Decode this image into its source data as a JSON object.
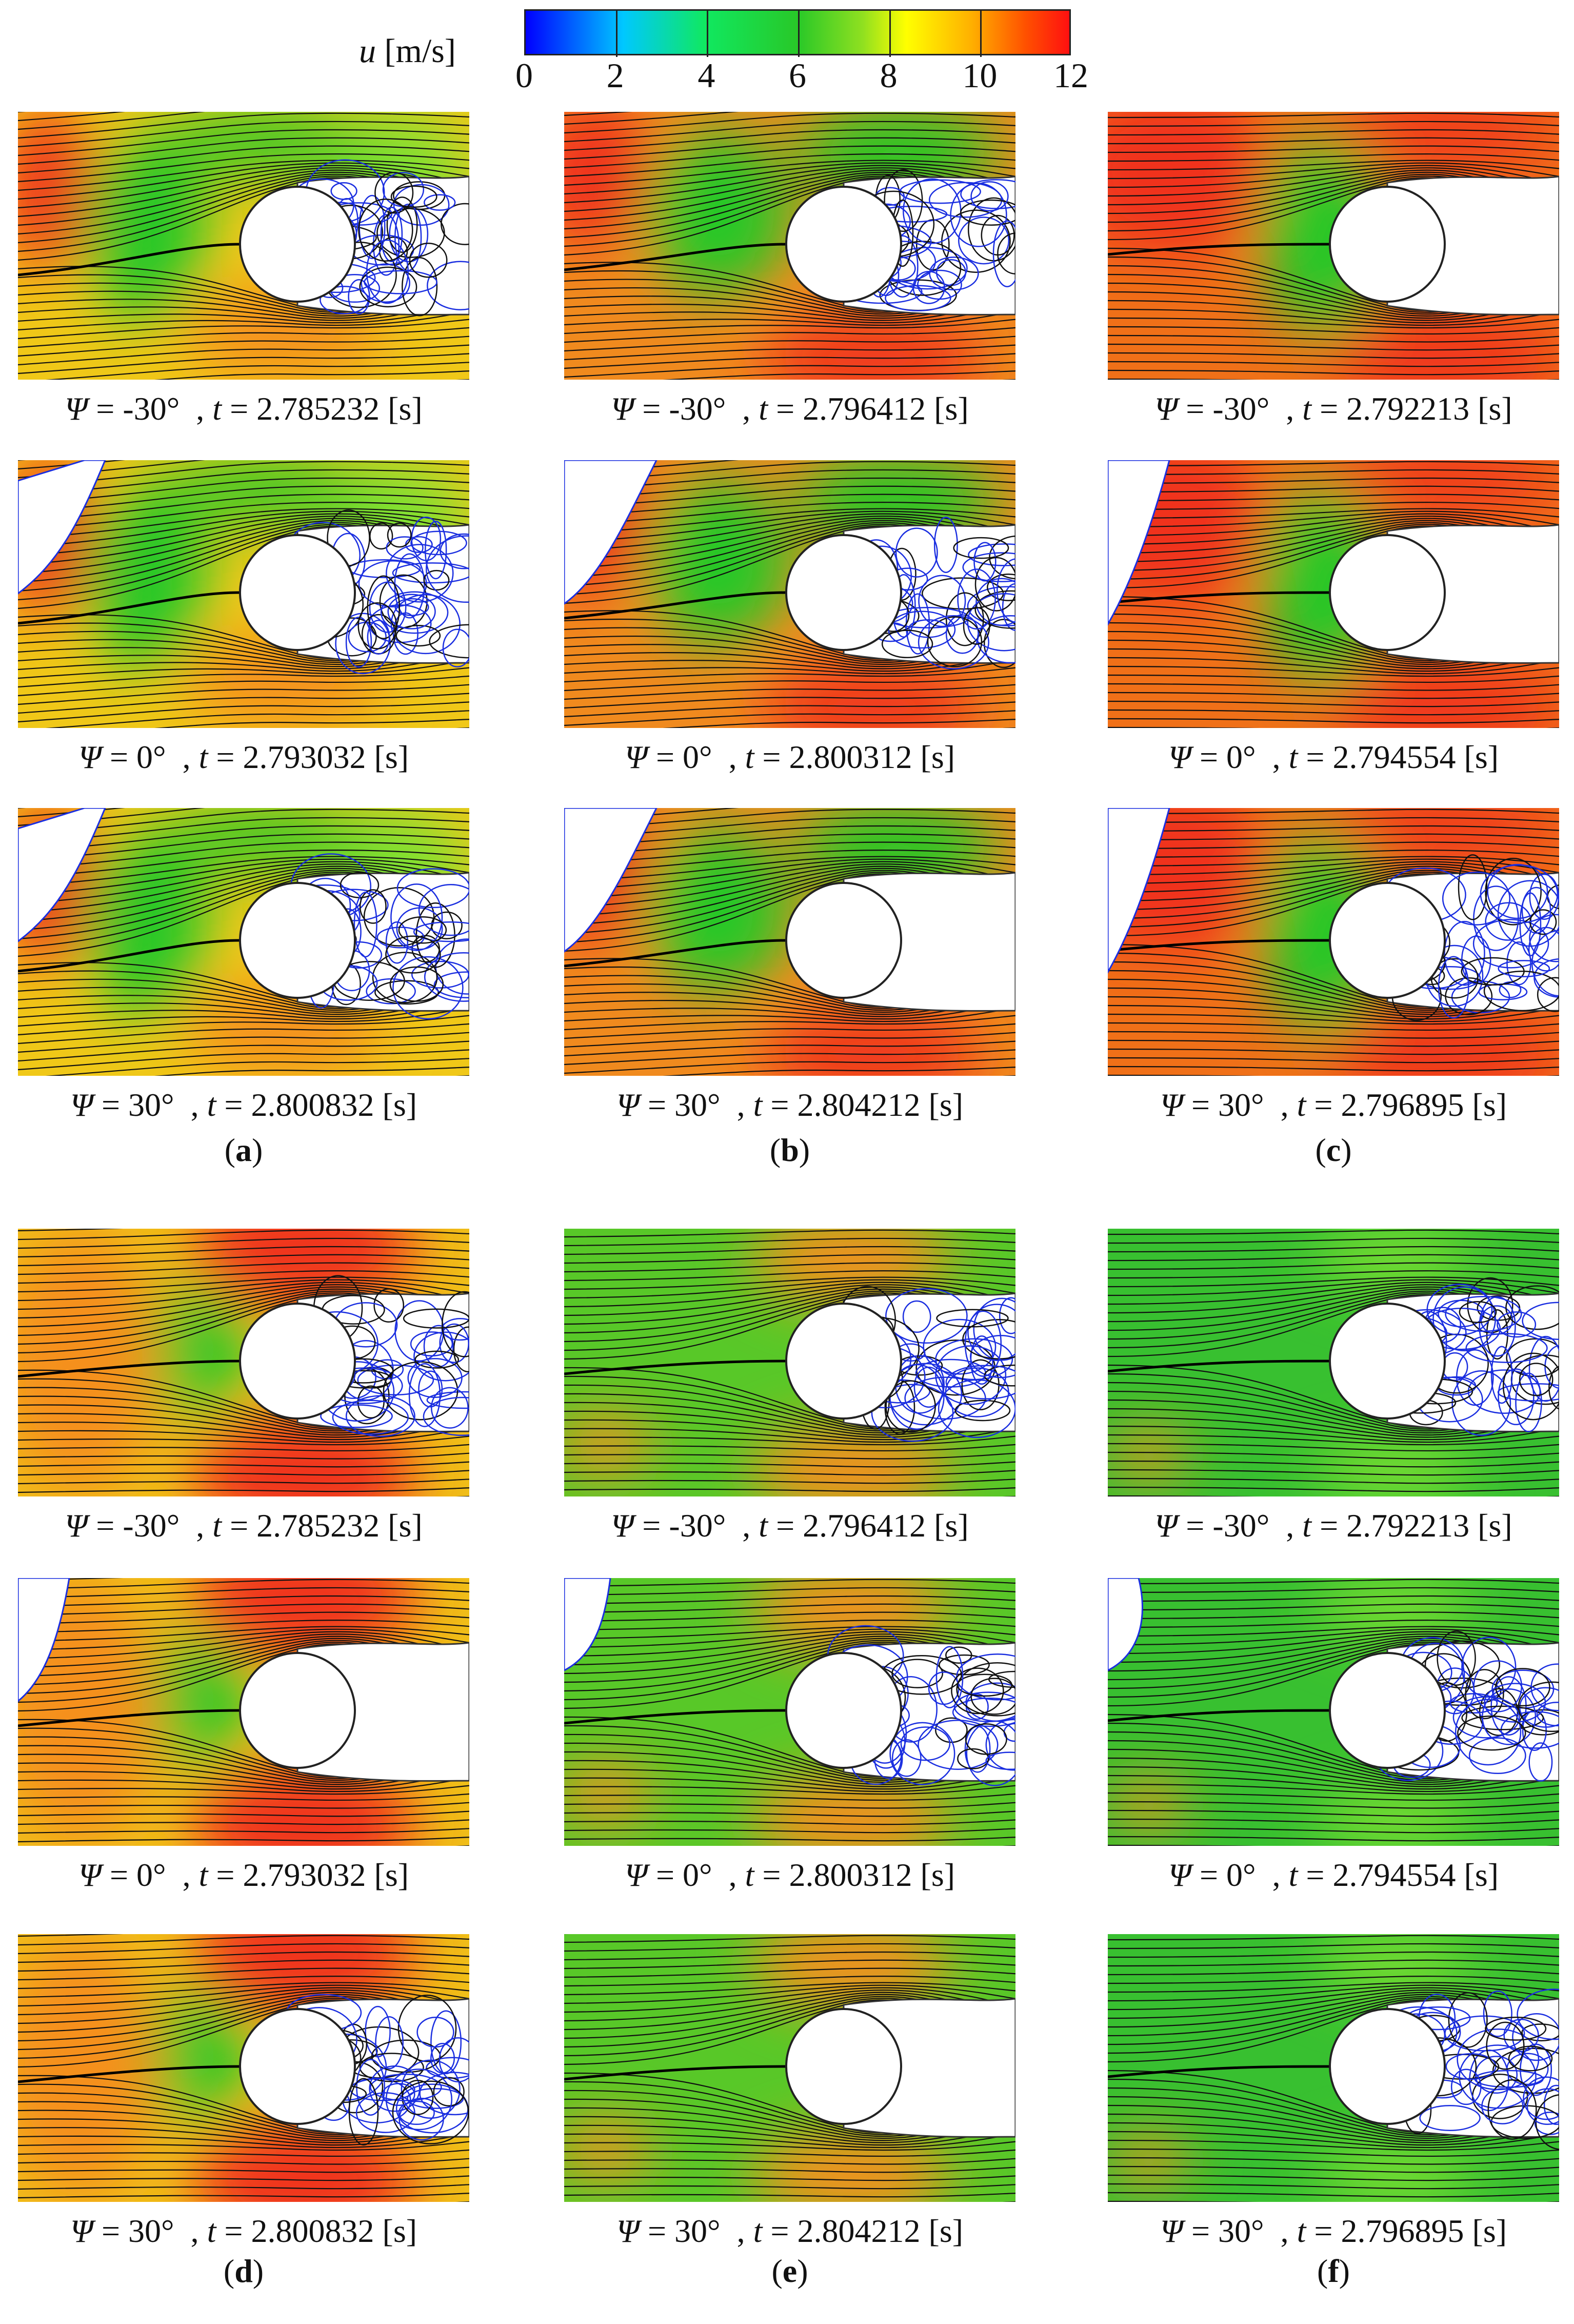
{
  "colorbar": {
    "variable": "u",
    "unit": "[m/s]",
    "ticks": [
      "0",
      "2",
      "4",
      "6",
      "8",
      "10",
      "12"
    ],
    "range": [
      0,
      12
    ]
  },
  "groups": [
    {
      "columns": [
        {
          "label": "a",
          "captions": [
            {
              "psi": "-30",
              "t": "2.785232"
            },
            {
              "psi": "0",
              "t": "2.793032"
            },
            {
              "psi": "30",
              "t": "2.800832"
            }
          ]
        },
        {
          "label": "b",
          "captions": [
            {
              "psi": "-30",
              "t": "2.796412"
            },
            {
              "psi": "0",
              "t": "2.800312"
            },
            {
              "psi": "30",
              "t": "2.804212"
            }
          ]
        },
        {
          "label": "c",
          "captions": [
            {
              "psi": "-30",
              "t": "2.792213"
            },
            {
              "psi": "0",
              "t": "2.794554"
            },
            {
              "psi": "30",
              "t": "2.796895"
            }
          ]
        }
      ]
    },
    {
      "columns": [
        {
          "label": "d",
          "captions": [
            {
              "psi": "-30",
              "t": "2.785232"
            },
            {
              "psi": "0",
              "t": "2.793032"
            },
            {
              "psi": "30",
              "t": "2.800832"
            }
          ]
        },
        {
          "label": "e",
          "captions": [
            {
              "psi": "-30",
              "t": "2.796412"
            },
            {
              "psi": "0",
              "t": "2.800312"
            },
            {
              "psi": "30",
              "t": "2.804212"
            }
          ]
        },
        {
          "label": "f",
          "captions": [
            {
              "psi": "-30",
              "t": "2.792213"
            },
            {
              "psi": "0",
              "t": "2.794554"
            },
            {
              "psi": "30",
              "t": "2.796895"
            }
          ]
        }
      ]
    }
  ]
}
